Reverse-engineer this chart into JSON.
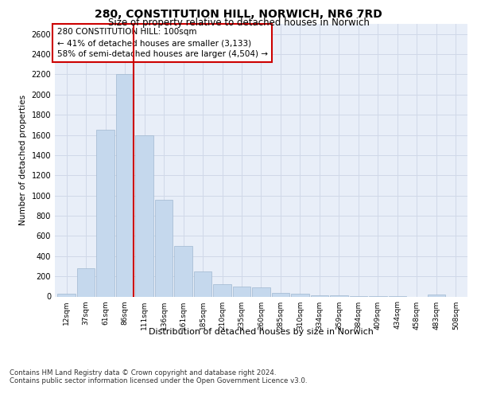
{
  "title1": "280, CONSTITUTION HILL, NORWICH, NR6 7RD",
  "title2": "Size of property relative to detached houses in Norwich",
  "xlabel": "Distribution of detached houses by size in Norwich",
  "ylabel": "Number of detached properties",
  "categories": [
    "12sqm",
    "37sqm",
    "61sqm",
    "86sqm",
    "111sqm",
    "136sqm",
    "161sqm",
    "185sqm",
    "210sqm",
    "235sqm",
    "260sqm",
    "285sqm",
    "310sqm",
    "334sqm",
    "359sqm",
    "384sqm",
    "409sqm",
    "434sqm",
    "458sqm",
    "483sqm",
    "508sqm"
  ],
  "values": [
    25,
    280,
    1650,
    2200,
    1600,
    960,
    500,
    245,
    120,
    95,
    90,
    35,
    25,
    15,
    10,
    5,
    5,
    5,
    0,
    20,
    0
  ],
  "bar_color": "#c5d8ed",
  "bar_edge_color": "#a0b8d0",
  "vline_color": "#cc0000",
  "vline_x": 3.46,
  "annotation_text": "280 CONSTITUTION HILL: 100sqm\n← 41% of detached houses are smaller (3,133)\n58% of semi-detached houses are larger (4,504) →",
  "annotation_box_color": "#ffffff",
  "annotation_box_edge": "#cc0000",
  "ylim": [
    0,
    2700
  ],
  "yticks": [
    0,
    200,
    400,
    600,
    800,
    1000,
    1200,
    1400,
    1600,
    1800,
    2000,
    2200,
    2400,
    2600
  ],
  "grid_color": "#d0d8e8",
  "bg_color": "#e8eef8",
  "footer1": "Contains HM Land Registry data © Crown copyright and database right 2024.",
  "footer2": "Contains public sector information licensed under the Open Government Licence v3.0."
}
